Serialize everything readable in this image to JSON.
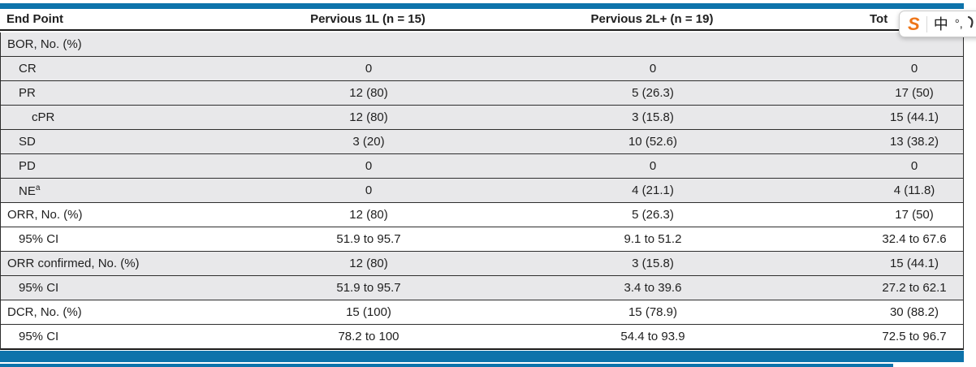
{
  "colors": {
    "accent_blue": "#0d73ab",
    "row_shade": "#e8e8ea",
    "rule_dark": "#1b1b1b",
    "logo_orange": "#ee7518"
  },
  "header": {
    "columns": [
      {
        "label": "End Point"
      },
      {
        "label": "Pervious 1L (n = 15)"
      },
      {
        "label": "Pervious 2L+ (n = 19)"
      },
      {
        "label": "Tot"
      }
    ]
  },
  "rows": [
    {
      "label": "BOR, No. (%)",
      "indent": 0,
      "shaded": true,
      "values": [
        "",
        "",
        ""
      ]
    },
    {
      "label": "CR",
      "indent": 1,
      "shaded": true,
      "values": [
        "0",
        "0",
        "0"
      ]
    },
    {
      "label": "PR",
      "indent": 1,
      "shaded": true,
      "values": [
        "12 (80)",
        "5 (26.3)",
        "17 (50)"
      ]
    },
    {
      "label": "cPR",
      "indent": 2,
      "shaded": true,
      "values": [
        "12 (80)",
        "3 (15.8)",
        "15 (44.1)"
      ]
    },
    {
      "label": "SD",
      "indent": 1,
      "shaded": true,
      "values": [
        "3 (20)",
        "10 (52.6)",
        "13 (38.2)"
      ]
    },
    {
      "label": "PD",
      "indent": 1,
      "shaded": true,
      "values": [
        "0",
        "0",
        "0"
      ]
    },
    {
      "label": "NE",
      "sup": "a",
      "indent": 1,
      "shaded": true,
      "values": [
        "0",
        "4 (21.1)",
        "4 (11.8)"
      ]
    },
    {
      "label": "ORR, No. (%)",
      "indent": 0,
      "shaded": false,
      "values": [
        "12 (80)",
        "5 (26.3)",
        "17 (50)"
      ]
    },
    {
      "label": "95% CI",
      "indent": 1,
      "shaded": false,
      "values": [
        "51.9 to 95.7",
        "9.1 to 51.2",
        "32.4 to 67.6"
      ]
    },
    {
      "label": "ORR confirmed, No. (%)",
      "indent": 0,
      "shaded": true,
      "values": [
        "12 (80)",
        "3 (15.8)",
        "15 (44.1)"
      ]
    },
    {
      "label": "95% CI",
      "indent": 1,
      "shaded": true,
      "values": [
        "51.9 to 95.7",
        "3.4 to 39.6",
        "27.2 to 62.1"
      ]
    },
    {
      "label": "DCR, No. (%)",
      "indent": 0,
      "shaded": false,
      "values": [
        "15 (100)",
        "15 (78.9)",
        "30 (88.2)"
      ]
    },
    {
      "label": "95% CI",
      "indent": 1,
      "shaded": false,
      "values": [
        "78.2 to 100",
        "54.4 to 93.9",
        "72.5 to 96.7"
      ]
    }
  ],
  "popup": {
    "logo_text": "S",
    "translate_label": "中",
    "partial_glyph": "°,"
  }
}
